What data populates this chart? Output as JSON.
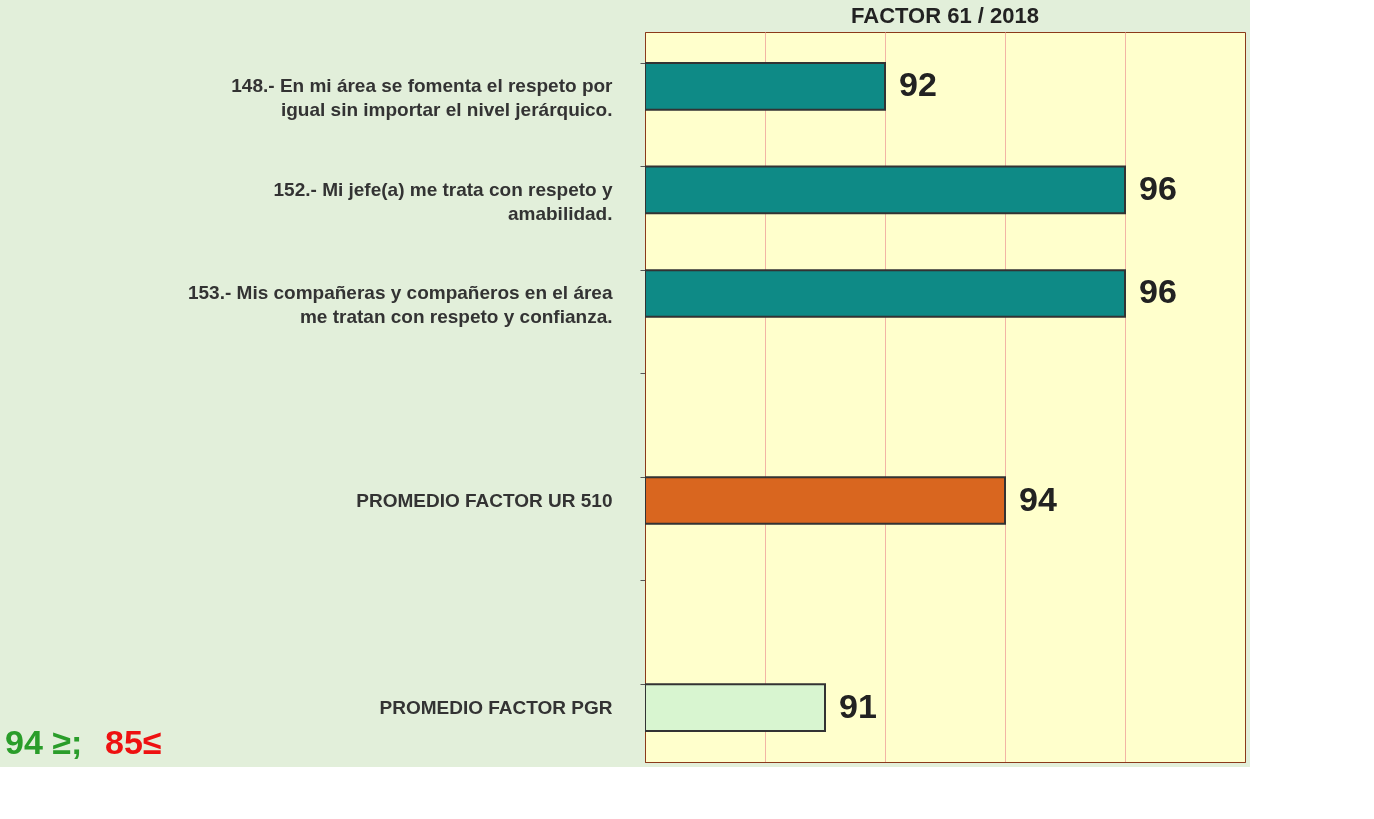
{
  "chart_data": {
    "type": "bar",
    "orientation": "horizontal",
    "title": "FACTOR 61 / 2018",
    "categories": [
      "148.- En mi área se fomenta el respeto por igual sin importar el nivel jerárquico.",
      "152.- Mi jefe(a) me trata con respeto y amabilidad.",
      "153.- Mis compañeras y compañeros en el área me tratan con respeto y confianza.",
      null,
      "PROMEDIO FACTOR UR 510",
      null,
      "PROMEDIO FACTOR PGR"
    ],
    "values": [
      92,
      96,
      96,
      null,
      94,
      null,
      91
    ],
    "colors": [
      "#0e8a86",
      "#0e8a86",
      "#0e8a86",
      "#0e8a86",
      "#d9661f",
      "#0e8a86",
      "#d8f5d0"
    ],
    "xlim": [
      88,
      98
    ],
    "xticks": [
      {
        "value": 90,
        "label": null
      },
      {
        "value": 92,
        "label": null
      },
      {
        "value": 94,
        "label": null
      },
      {
        "value": 96,
        "label": null
      }
    ],
    "tick_labels": false,
    "grid": "x",
    "data_labels": true,
    "annotations": [
      "94 ≥;",
      "85≤"
    ]
  }
}
